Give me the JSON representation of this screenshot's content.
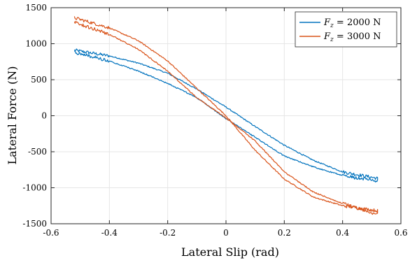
{
  "chart_data": {
    "type": "line",
    "xlabel": "Lateral Slip (rad)",
    "ylabel": "Lateral Force (N)",
    "xlim": [
      -0.6,
      0.6
    ],
    "ylim": [
      -1500,
      1500
    ],
    "xticks": [
      -0.6,
      -0.4,
      -0.2,
      0,
      0.2,
      0.4,
      0.6
    ],
    "yticks": [
      -1500,
      -1000,
      -500,
      0,
      500,
      1000,
      1500
    ],
    "xtick_labels": [
      "-0.6",
      "-0.4",
      "-0.2",
      "0",
      "0.2",
      "0.4",
      "0.6"
    ],
    "ytick_labels": [
      "-1500",
      "-1000",
      "-500",
      "0",
      "500",
      "1000",
      "1500"
    ],
    "grid": true,
    "legend_position": "top-right",
    "series": [
      {
        "name": "F_z = 2000 N",
        "legend_symbol": "F",
        "legend_subscript": "z",
        "legend_value": " = 2000 N",
        "color": "#0072BD",
        "upper": {
          "x": [
            -0.52,
            -0.4,
            -0.3,
            -0.2,
            -0.1,
            0,
            0.1,
            0.2,
            0.3,
            0.4,
            0.52
          ],
          "y": [
            910,
            830,
            730,
            590,
            370,
            120,
            -150,
            -410,
            -620,
            -780,
            -870
          ]
        },
        "lower": {
          "x": [
            -0.52,
            -0.4,
            -0.3,
            -0.2,
            -0.1,
            0,
            0.1,
            0.2,
            0.3,
            0.4,
            0.52
          ],
          "y": [
            880,
            760,
            620,
            450,
            250,
            -40,
            -300,
            -560,
            -710,
            -830,
            -910
          ]
        }
      },
      {
        "name": "F_z = 3000 N",
        "legend_symbol": "F",
        "legend_subscript": "z",
        "legend_value": " = 3000 N",
        "color": "#D95319",
        "upper": {
          "x": [
            -0.52,
            -0.4,
            -0.3,
            -0.2,
            -0.1,
            0,
            0.1,
            0.2,
            0.3,
            0.4,
            0.52
          ],
          "y": [
            1360,
            1220,
            1040,
            760,
            380,
            0,
            -480,
            -880,
            -1130,
            -1250,
            -1320
          ]
        },
        "lower": {
          "x": [
            -0.52,
            -0.4,
            -0.3,
            -0.2,
            -0.1,
            0,
            0.1,
            0.2,
            0.3,
            0.4,
            0.52
          ],
          "y": [
            1300,
            1130,
            920,
            620,
            250,
            -30,
            -350,
            -780,
            -1060,
            -1220,
            -1370
          ]
        }
      }
    ]
  }
}
